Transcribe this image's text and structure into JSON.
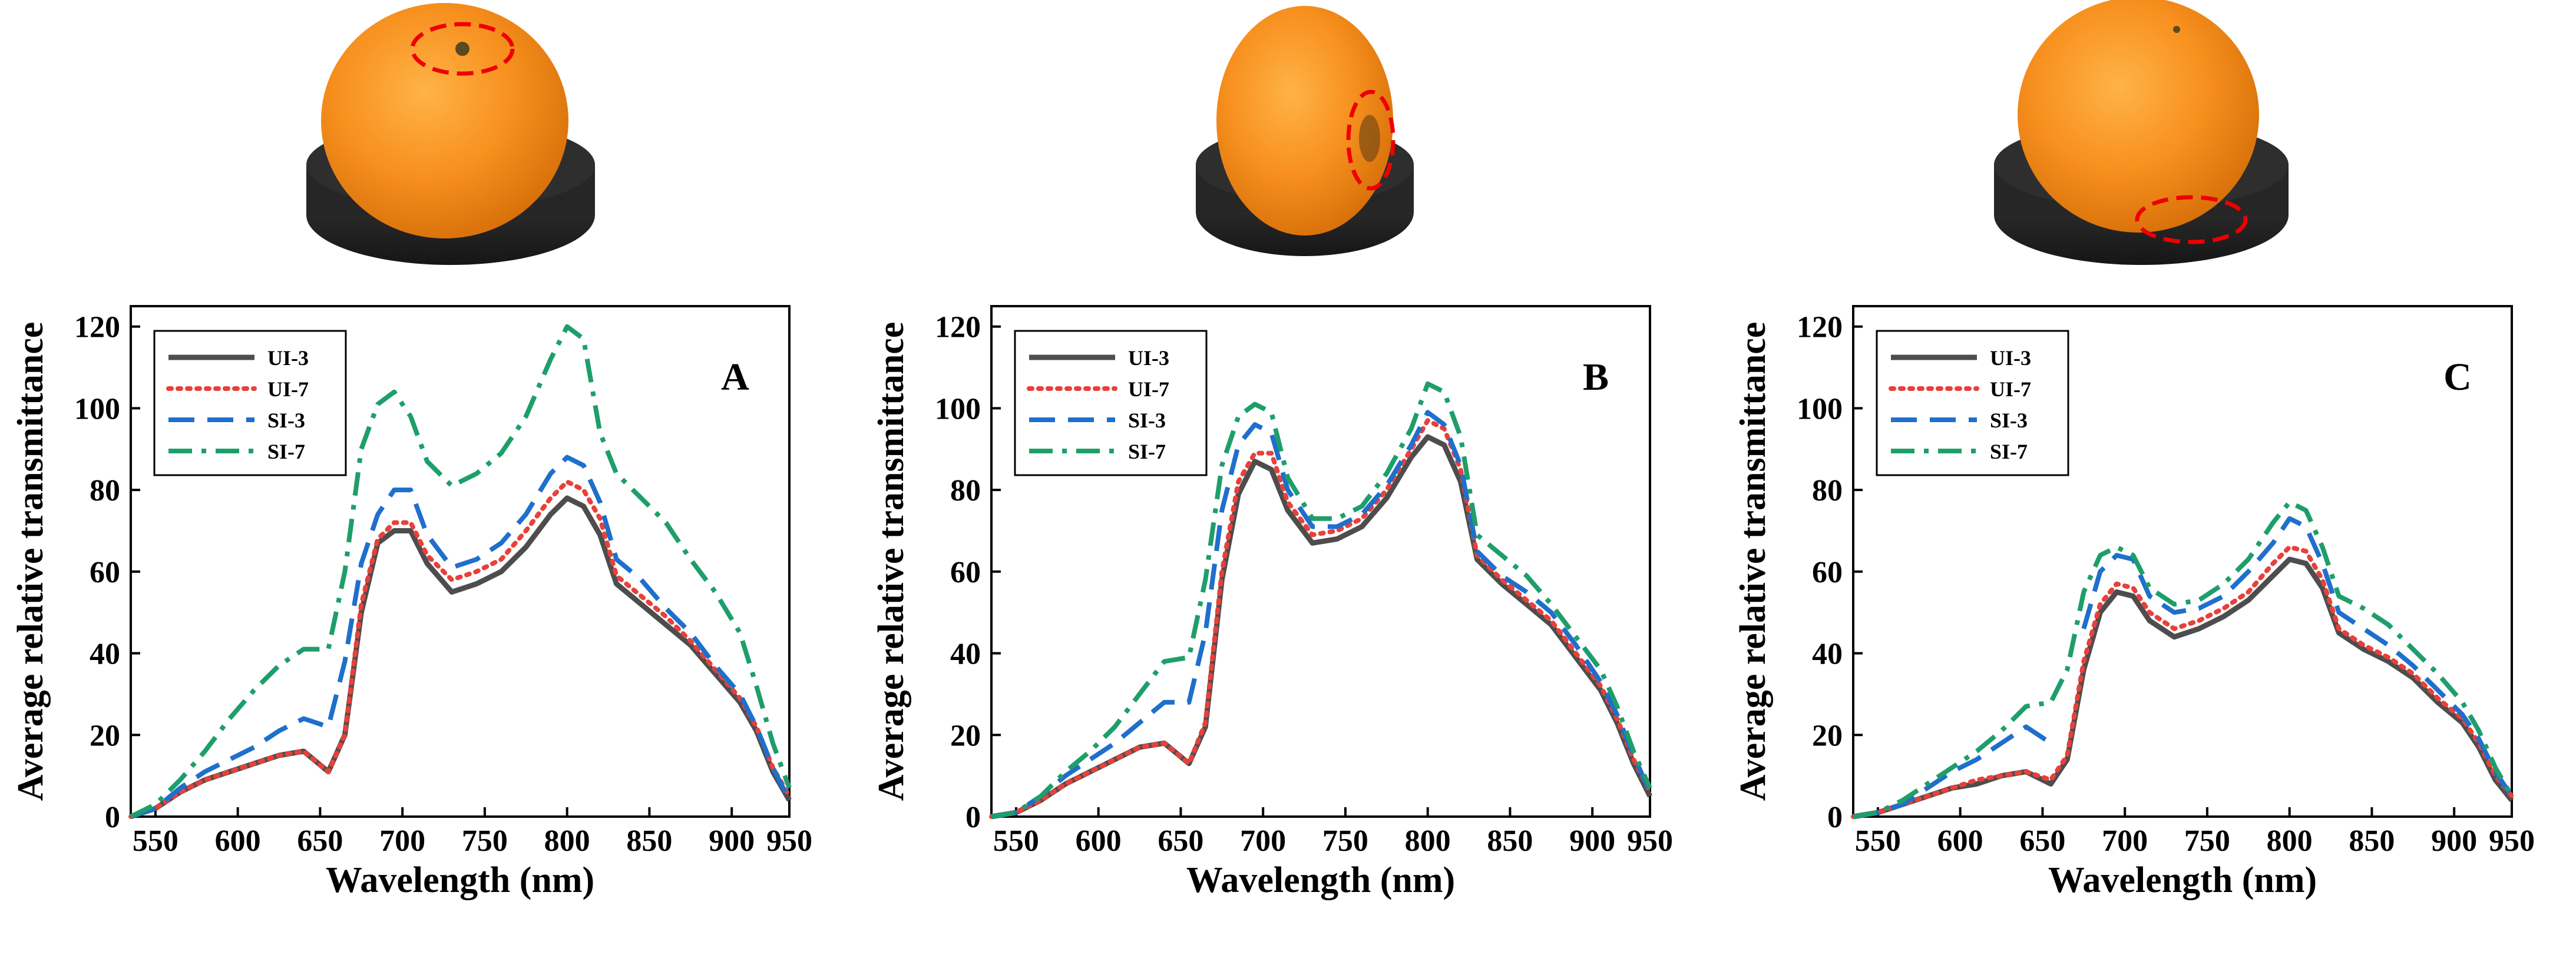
{
  "figure": {
    "photo_descriptions": [
      "orange on black holder, calyx region circled",
      "orange on black holder, side region circled",
      "orange on black holder, bottom region circled"
    ]
  },
  "chart_data": [
    {
      "type": "line",
      "panel": "A",
      "xlabel": "Wavelength (nm)",
      "ylabel": "Average relative transmittance",
      "xlim": [
        535,
        935
      ],
      "ylim": [
        0,
        125
      ],
      "xticks": [
        550,
        600,
        650,
        700,
        750,
        800,
        850,
        900,
        950
      ],
      "yticks": [
        0,
        20,
        40,
        60,
        80,
        100,
        120
      ],
      "legend_position": "top-left",
      "x": [
        535,
        550,
        565,
        580,
        595,
        610,
        625,
        640,
        655,
        665,
        675,
        685,
        695,
        705,
        715,
        730,
        745,
        760,
        775,
        790,
        800,
        810,
        820,
        830,
        845,
        860,
        875,
        890,
        905,
        915,
        925,
        935
      ],
      "series": [
        {
          "name": "UI-3",
          "color": "#4d4d4d",
          "style": "solid",
          "values": [
            0,
            2,
            6,
            9,
            11,
            13,
            15,
            16,
            11,
            20,
            50,
            67,
            70,
            70,
            62,
            55,
            57,
            60,
            66,
            74,
            78,
            76,
            69,
            57,
            52,
            47,
            42,
            35,
            28,
            21,
            11,
            4
          ]
        },
        {
          "name": "UI-7",
          "color": "#e8403a",
          "style": "dotted",
          "values": [
            0,
            2,
            6,
            9,
            11,
            13,
            15,
            16,
            11,
            20,
            52,
            68,
            72,
            72,
            64,
            58,
            60,
            63,
            70,
            78,
            82,
            80,
            73,
            59,
            54,
            49,
            43,
            36,
            29,
            22,
            12,
            5
          ]
        },
        {
          "name": "SI-3",
          "color": "#1f6fcc",
          "style": "dashed",
          "values": [
            0,
            2,
            7,
            11,
            14,
            17,
            21,
            24,
            22,
            38,
            62,
            74,
            80,
            80,
            69,
            61,
            63,
            67,
            74,
            84,
            88,
            86,
            77,
            63,
            58,
            51,
            45,
            37,
            30,
            22,
            12,
            4
          ]
        },
        {
          "name": "SI-7",
          "color": "#1e9e6a",
          "style": "dashdot",
          "values": [
            0,
            3,
            9,
            16,
            24,
            31,
            37,
            41,
            41,
            60,
            90,
            101,
            104,
            98,
            87,
            81,
            84,
            89,
            98,
            112,
            120,
            117,
            94,
            84,
            78,
            72,
            63,
            55,
            45,
            32,
            18,
            7
          ]
        }
      ]
    },
    {
      "type": "line",
      "panel": "B",
      "xlabel": "Wavelength (nm)",
      "ylabel": "Average relative transmittance",
      "xlim": [
        535,
        935
      ],
      "ylim": [
        0,
        125
      ],
      "xticks": [
        550,
        600,
        650,
        700,
        750,
        800,
        850,
        900,
        950
      ],
      "yticks": [
        0,
        20,
        40,
        60,
        80,
        100,
        120
      ],
      "legend_position": "top-left",
      "x": [
        535,
        550,
        565,
        580,
        595,
        610,
        625,
        640,
        655,
        665,
        675,
        685,
        695,
        705,
        715,
        730,
        745,
        760,
        775,
        790,
        800,
        810,
        820,
        830,
        845,
        860,
        875,
        890,
        905,
        915,
        925,
        935
      ],
      "series": [
        {
          "name": "UI-3",
          "color": "#4d4d4d",
          "style": "solid",
          "values": [
            0,
            1,
            4,
            8,
            11,
            14,
            17,
            18,
            13,
            22,
            58,
            79,
            87,
            85,
            75,
            67,
            68,
            71,
            78,
            88,
            93,
            91,
            82,
            63,
            57,
            52,
            47,
            39,
            31,
            23,
            13,
            5
          ]
        },
        {
          "name": "UI-7",
          "color": "#e8403a",
          "style": "dotted",
          "values": [
            0,
            1,
            4,
            8,
            11,
            14,
            17,
            18,
            13,
            23,
            60,
            82,
            89,
            89,
            77,
            69,
            70,
            73,
            80,
            90,
            97,
            95,
            85,
            64,
            58,
            53,
            48,
            40,
            32,
            24,
            14,
            6
          ]
        },
        {
          "name": "SI-3",
          "color": "#1f6fcc",
          "style": "dashed",
          "values": [
            0,
            1,
            5,
            10,
            14,
            18,
            23,
            28,
            28,
            45,
            75,
            91,
            96,
            94,
            80,
            71,
            71,
            74,
            81,
            91,
            99,
            96,
            86,
            65,
            59,
            55,
            50,
            42,
            33,
            25,
            15,
            6
          ]
        },
        {
          "name": "SI-7",
          "color": "#1e9e6a",
          "style": "dashdot",
          "values": [
            0,
            1,
            5,
            11,
            16,
            22,
            30,
            38,
            39,
            58,
            86,
            98,
            101,
            99,
            83,
            73,
            73,
            76,
            84,
            95,
            106,
            104,
            93,
            69,
            64,
            59,
            52,
            44,
            36,
            27,
            16,
            7
          ]
        }
      ]
    },
    {
      "type": "line",
      "panel": "C",
      "xlabel": "Wavelength (nm)",
      "ylabel": "Average relative transmittance",
      "xlim": [
        535,
        935
      ],
      "ylim": [
        0,
        125
      ],
      "xticks": [
        550,
        600,
        650,
        700,
        750,
        800,
        850,
        900,
        950
      ],
      "yticks": [
        0,
        20,
        40,
        60,
        80,
        100,
        120
      ],
      "legend_position": "top-left",
      "x": [
        535,
        550,
        565,
        580,
        595,
        610,
        625,
        640,
        655,
        665,
        675,
        685,
        695,
        705,
        715,
        730,
        745,
        760,
        775,
        790,
        800,
        810,
        820,
        830,
        845,
        860,
        875,
        890,
        905,
        915,
        925,
        935
      ],
      "series": [
        {
          "name": "UI-3",
          "color": "#4d4d4d",
          "style": "solid",
          "values": [
            0,
            1,
            3,
            5,
            7,
            8,
            10,
            11,
            8,
            14,
            36,
            50,
            55,
            54,
            48,
            44,
            46,
            49,
            53,
            59,
            63,
            62,
            56,
            45,
            41,
            38,
            34,
            28,
            23,
            17,
            9,
            4
          ]
        },
        {
          "name": "UI-7",
          "color": "#e8403a",
          "style": "dotted",
          "values": [
            0,
            1,
            3,
            5,
            7,
            9,
            10,
            11,
            9,
            15,
            38,
            52,
            57,
            56,
            50,
            46,
            48,
            51,
            55,
            62,
            66,
            65,
            58,
            46,
            42,
            39,
            35,
            29,
            24,
            18,
            10,
            5
          ]
        },
        {
          "name": "SI-3",
          "color": "#1f6fcc",
          "style": "dashed",
          "values": [
            0,
            1,
            3,
            7,
            11,
            14,
            18,
            22,
            18,
            null,
            46,
            60,
            64,
            63,
            54,
            50,
            51,
            54,
            60,
            67,
            73,
            71,
            62,
            50,
            46,
            42,
            37,
            31,
            25,
            19,
            11,
            5
          ]
        },
        {
          "name": "SI-7",
          "color": "#1e9e6a",
          "style": "dashdot",
          "values": [
            0,
            1,
            4,
            8,
            12,
            16,
            21,
            27,
            28,
            36,
            55,
            64,
            66,
            64,
            56,
            52,
            53,
            57,
            63,
            72,
            77,
            75,
            66,
            54,
            51,
            47,
            41,
            35,
            28,
            21,
            12,
            5
          ]
        }
      ]
    }
  ]
}
